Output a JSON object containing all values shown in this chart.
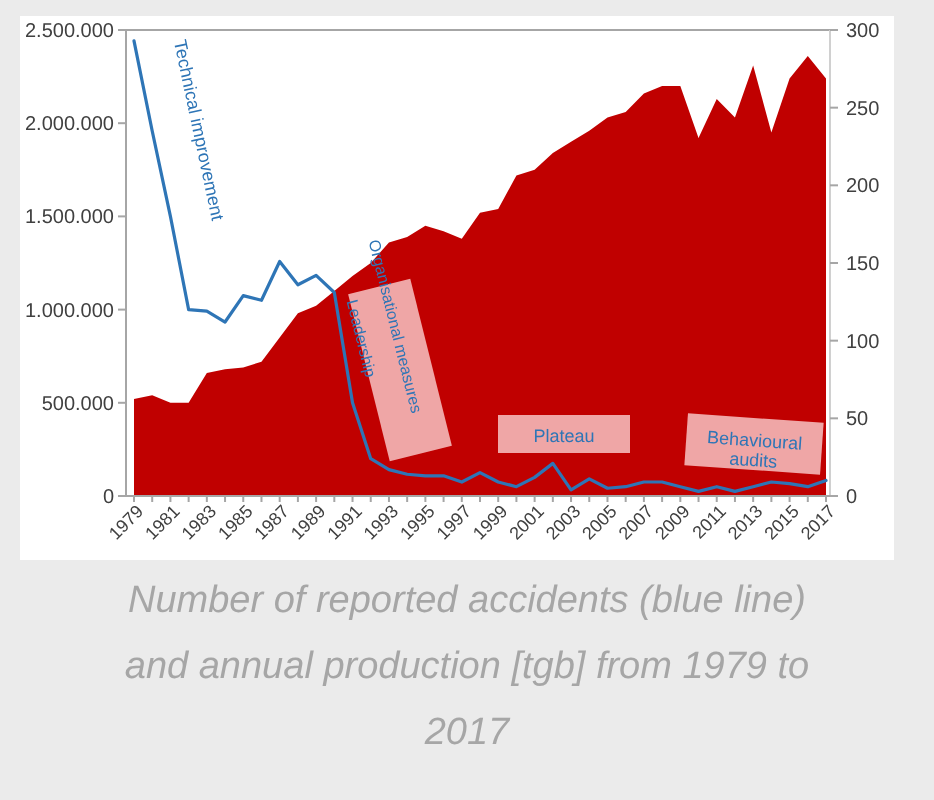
{
  "chart_data": {
    "type": "area",
    "title": "Number of reported accidents (blue line) and annual production [tgb] from 1979 to 2017",
    "categories": [
      "1979",
      null,
      "1981",
      null,
      "1983",
      null,
      "1985",
      null,
      "1987",
      null,
      "1989",
      null,
      "1991",
      null,
      "1993",
      null,
      "1995",
      null,
      "1997",
      null,
      "1999",
      null,
      "2001",
      null,
      "2003",
      null,
      "2005",
      null,
      "2007",
      null,
      "2009",
      null,
      "2011",
      null,
      "2013",
      null,
      "2015",
      null,
      "2017"
    ],
    "series": [
      {
        "type": "area",
        "color": "#c00000",
        "values": [
          520000,
          540000,
          500000,
          500000,
          660000,
          680000,
          690000,
          720000,
          850000,
          980000,
          1020000,
          1100000,
          1180000,
          1250000,
          1360000,
          1390000,
          1450000,
          1420000,
          1380000,
          1520000,
          1540000,
          1720000,
          1750000,
          1840000,
          1900000,
          1960000,
          2030000,
          2060000,
          2160000,
          2200000,
          2200000,
          1920000,
          2130000,
          2030000,
          2310000,
          1950000,
          2240000,
          2360000,
          2240000
        ]
      },
      {
        "type": "line",
        "axis": "y2",
        "color": "#2e75b6",
        "values": [
          293,
          235,
          180,
          120,
          119,
          112,
          129,
          126,
          151,
          136,
          142,
          131,
          60,
          24,
          17,
          14,
          13,
          13,
          9,
          15,
          9,
          6,
          12,
          21,
          4,
          11,
          5,
          6,
          9,
          9,
          6,
          3,
          6,
          3,
          6,
          9,
          8,
          6,
          10
        ]
      }
    ],
    "ylim": [
      0,
      2500000
    ],
    "yticks": [
      {
        "value": 0,
        "label": "0"
      },
      {
        "value": 500000,
        "label": "500.000"
      },
      {
        "value": 1000000,
        "label": "1.000.000"
      },
      {
        "value": 1500000,
        "label": "1.500.000"
      },
      {
        "value": 2000000,
        "label": "2.000.000"
      },
      {
        "value": 2500000,
        "label": "2.500.000"
      }
    ],
    "y2lim": [
      0,
      300
    ],
    "y2ticks": [
      0,
      50,
      100,
      150,
      200,
      250,
      300
    ],
    "annotations": [
      "Technical improvement",
      "Organisational measures",
      "Leadership",
      "Plateau",
      "Behavioural audits"
    ],
    "grid": false
  }
}
